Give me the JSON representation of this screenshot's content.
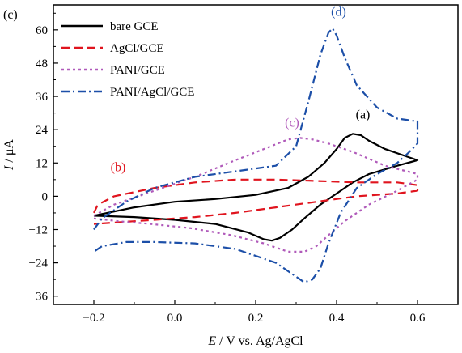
{
  "panel_label": "(c)",
  "chart_data": {
    "type": "line",
    "xlabel_symbol": "E",
    "xlabel_rest": " / V vs. Ag/AgCl",
    "ylabel_symbol": "I",
    "ylabel_rest": " / μA",
    "xlim": [
      -0.3,
      0.7
    ],
    "ylim": [
      -39,
      69
    ],
    "xticks": [
      -0.2,
      0.0,
      0.2,
      0.4,
      0.6
    ],
    "xtick_labels": [
      "−0.2",
      "0.0",
      "0.2",
      "0.4",
      "0.6"
    ],
    "yticks": [
      -36,
      -24,
      -12,
      0,
      12,
      24,
      36,
      48,
      60
    ],
    "ytick_labels": [
      "−36",
      "−24",
      "−12",
      "0",
      "12",
      "24",
      "36",
      "48",
      "60"
    ],
    "grid": false,
    "legend_position": "top-left",
    "series": [
      {
        "name": "bare GCE",
        "color": "#000000",
        "dash": "solid",
        "x": [
          -0.2,
          -0.1,
          0.0,
          0.1,
          0.2,
          0.28,
          0.33,
          0.37,
          0.4,
          0.42,
          0.44,
          0.46,
          0.48,
          0.52,
          0.56,
          0.6,
          0.55,
          0.48,
          0.44,
          0.4,
          0.36,
          0.32,
          0.29,
          0.26,
          0.24,
          0.22,
          0.18,
          0.1,
          0.0,
          -0.1,
          -0.2
        ],
        "y": [
          -7,
          -4,
          -2,
          -1,
          0.5,
          3,
          7,
          12,
          17,
          21,
          22.5,
          22,
          20,
          17,
          15,
          13,
          11,
          8,
          5,
          1,
          -3,
          -8,
          -12,
          -15,
          -16,
          -15.5,
          -13,
          -10,
          -8.5,
          -7.5,
          -7
        ]
      },
      {
        "name": "AgCl/GCE",
        "color": "#e0141e",
        "dash": "10,6",
        "x": [
          -0.2,
          -0.19,
          -0.15,
          -0.05,
          0.05,
          0.15,
          0.25,
          0.35,
          0.45,
          0.55,
          0.6,
          0.6,
          0.55,
          0.45,
          0.35,
          0.25,
          0.15,
          0.05,
          -0.05,
          -0.15,
          -0.2
        ],
        "y": [
          -6,
          -3,
          0,
          3,
          5,
          6,
          6,
          5.5,
          5,
          5,
          4,
          2,
          1,
          0,
          -2,
          -4,
          -6,
          -7.5,
          -8.5,
          -9.5,
          -10
        ]
      },
      {
        "name": "PANI/GCE",
        "color": "#b05aba",
        "dash": "3,4",
        "x": [
          -0.2,
          -0.15,
          -0.05,
          0.05,
          0.15,
          0.22,
          0.28,
          0.31,
          0.34,
          0.38,
          0.44,
          0.52,
          0.6,
          0.6,
          0.55,
          0.48,
          0.42,
          0.38,
          0.35,
          0.32,
          0.28,
          0.22,
          0.14,
          0.04,
          -0.06,
          -0.14,
          -0.2
        ],
        "y": [
          -7,
          -3,
          2,
          7,
          13,
          17,
          20.5,
          21,
          20.5,
          19,
          16,
          11,
          8,
          6,
          2,
          -3,
          -9,
          -14,
          -18,
          -20,
          -20,
          -17,
          -14,
          -11.5,
          -10,
          -9,
          -8
        ]
      },
      {
        "name": "PANI/AgCl/GCE",
        "color": "#1c4fa8",
        "dash": "10,4,2,4",
        "x": [
          -0.2,
          -0.18,
          -0.12,
          -0.05,
          0.05,
          0.15,
          0.25,
          0.3,
          0.33,
          0.36,
          0.38,
          0.39,
          0.4,
          0.42,
          0.45,
          0.5,
          0.55,
          0.6,
          0.6,
          0.58,
          0.55,
          0.5,
          0.45,
          0.41,
          0.38,
          0.36,
          0.34,
          0.32,
          0.29,
          0.25,
          0.15,
          0.05,
          -0.05,
          -0.12,
          -0.18,
          -0.2
        ],
        "y": [
          -12,
          -8,
          -2,
          3,
          7,
          9,
          11,
          18,
          34,
          51,
          59,
          60.5,
          58,
          50,
          40,
          32,
          28,
          27,
          19,
          16,
          12,
          8,
          3,
          -6,
          -17,
          -26,
          -30,
          -31,
          -28,
          -24,
          -19,
          -17,
          -16.5,
          -16.5,
          -18,
          -20
        ]
      }
    ],
    "annotations": [
      {
        "text": "(a)",
        "series": "bare GCE",
        "x": 0.465,
        "y": 28
      },
      {
        "text": "(b)",
        "series": "AgCl/GCE",
        "x": -0.14,
        "y": 9
      },
      {
        "text": "(c)",
        "series": "PANI/GCE",
        "x": 0.29,
        "y": 25
      },
      {
        "text": "(d)",
        "series": "PANI/AgCl/GCE",
        "x": 0.405,
        "y": 65
      }
    ]
  }
}
